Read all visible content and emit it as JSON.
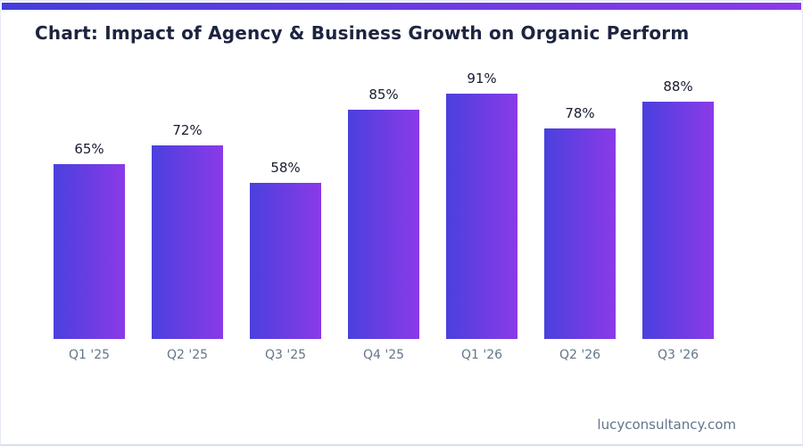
{
  "chart_data": {
    "type": "bar",
    "title": "Chart: Impact of Agency & Business Growth on Organic Perform",
    "categories": [
      "Q1 '25",
      "Q2 '25",
      "Q3 '25",
      "Q4 '25",
      "Q1 '26",
      "Q2 '26",
      "Q3 '26"
    ],
    "values": [
      65,
      72,
      58,
      85,
      91,
      78,
      88
    ],
    "value_labels": [
      "65%",
      "72%",
      "58%",
      "85%",
      "91%",
      "78%",
      "88%"
    ],
    "unit": "%",
    "xlabel": "",
    "ylabel": "",
    "ylim": [
      0,
      100
    ],
    "grid": false,
    "legend": "none",
    "axes_drawn": false
  },
  "footer": {
    "watermark": "lucyconsultancy.com"
  },
  "colors": {
    "bar_gradient_start": "#4a40de",
    "bar_gradient_end": "#8b3ae8",
    "accent_gradient_start": "#443edb",
    "accent_gradient_end": "#8b3ae9",
    "title_text": "#1d2440",
    "value_label_text": "#171c30",
    "axis_label_text": "#64748b",
    "watermark_text": "#64748b",
    "background": "#ffffff",
    "card_border": "#e4eaf3"
  }
}
